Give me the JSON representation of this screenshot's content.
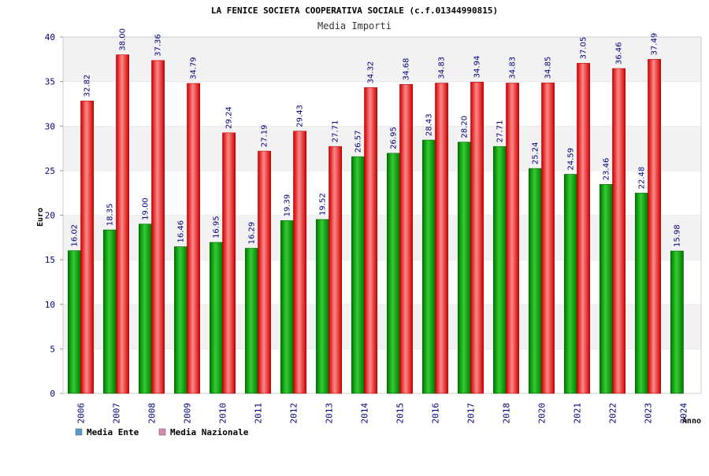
{
  "colors": {
    "ente_light": "#33cc33",
    "ente_dark": "#007700",
    "nazionale_light": "#ff8888",
    "nazionale_dark": "#cc0000",
    "legend_ente": "#5b9bd5",
    "legend_nazionale": "#d98cb3",
    "band": "#f2f2f2",
    "text_blue": "#000080"
  },
  "chart_data": {
    "type": "bar",
    "title": "LA FENICE SOCIETA COOPERATIVA SOCIALE (c.f.01344990815)",
    "subtitle": "Media Importi",
    "xlabel": "Anno",
    "ylabel": "Euro",
    "ylim": [
      0,
      40
    ],
    "yticks": [
      0,
      5,
      10,
      15,
      20,
      25,
      30,
      35,
      40
    ],
    "grid": "alternating horizontal bands",
    "legend_position": "bottom-left",
    "categories": [
      "2006",
      "2007",
      "2008",
      "2009",
      "2010",
      "2011",
      "2012",
      "2013",
      "2014",
      "2015",
      "2016",
      "2017",
      "2018",
      "2020",
      "2021",
      "2022",
      "2023",
      "2024"
    ],
    "series": [
      {
        "name": "Media Ente",
        "values": [
          16.02,
          18.35,
          19.0,
          16.46,
          16.95,
          16.29,
          19.39,
          19.52,
          26.57,
          26.95,
          28.43,
          28.2,
          27.71,
          25.24,
          24.59,
          23.46,
          22.48,
          15.98
        ],
        "labels": [
          "16.02",
          "18.35",
          "19.00",
          "16.46",
          "16.95",
          "16.29",
          "19.39",
          "19.52",
          "26.57",
          "26.95",
          "28.43",
          "28.20",
          "27.71",
          "25.24",
          "24.59",
          "23.46",
          "22.48",
          "15.98"
        ]
      },
      {
        "name": "Media Nazionale",
        "values": [
          32.82,
          38.0,
          37.36,
          34.79,
          29.24,
          27.19,
          29.43,
          27.71,
          34.32,
          34.68,
          34.83,
          34.94,
          34.83,
          34.85,
          37.05,
          36.46,
          37.49,
          null
        ],
        "labels": [
          "32.82",
          "38.00",
          "37.36",
          "34.79",
          "29.24",
          "27.19",
          "29.43",
          "27.71",
          "34.32",
          "34.68",
          "34.83",
          "34.94",
          "34.83",
          "34.85",
          "37.05",
          "36.46",
          "37.49",
          ""
        ]
      }
    ]
  }
}
